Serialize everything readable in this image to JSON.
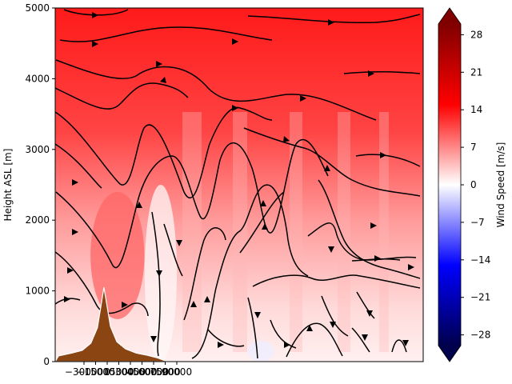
{
  "chart_data": {
    "type": "heatmap",
    "title": "",
    "xlabel": "",
    "ylabel": "Height ASL [m]",
    "x_tick_labels": [
      "−30000",
      "−15000",
      "0",
      "15000",
      "30000",
      "45000",
      "60000",
      "75000",
      "90000"
    ],
    "y_ticks": [
      0,
      1000,
      2000,
      3000,
      4000,
      5000
    ],
    "y_tick_labels": [
      "0",
      "1000",
      "2000",
      "3000",
      "4000",
      "5000"
    ],
    "ylim": [
      0,
      5000
    ],
    "xlim": [
      -45000,
      295000
    ],
    "colorbar": {
      "label": "Wind Speed [m/s]",
      "ticks": [
        -28,
        -21,
        -14,
        -7,
        0,
        7,
        14,
        21,
        28
      ],
      "tick_labels": [
        "−28",
        "−21",
        "−14",
        "−7",
        "0",
        "7",
        "14",
        "21",
        "28"
      ],
      "range": [
        -30,
        30
      ],
      "colormap": "seismic",
      "extend": "both"
    },
    "terrain": {
      "peak_x": 0,
      "peak_height": 1050,
      "color": "#8b4513",
      "profile_x": [
        -45000,
        -42000,
        -30000,
        -20000,
        -12000,
        -6000,
        -3000,
        0,
        3000,
        6000,
        12000,
        20000,
        30000,
        40000,
        50000,
        55000,
        60000
      ],
      "profile_h": [
        0,
        80,
        120,
        160,
        260,
        480,
        760,
        1050,
        780,
        500,
        280,
        180,
        120,
        90,
        50,
        20,
        0
      ]
    },
    "wind_speed_regions": [
      {
        "x_from": -45000,
        "x_to": 295000,
        "z_from": 3000,
        "z_to": 5000,
        "speed": 17
      },
      {
        "x_from": -45000,
        "x_to": 295000,
        "z_from": 1500,
        "z_to": 3000,
        "speed": 12
      },
      {
        "x_from": -45000,
        "x_to": 295000,
        "z_from": 0,
        "z_to": 1500,
        "speed": 5
      },
      {
        "x_from": -5000,
        "x_to": 30000,
        "z_from": 600,
        "z_to": 2400,
        "speed": 18
      },
      {
        "x_from": 45000,
        "x_to": 60000,
        "z_from": 0,
        "z_to": 2500,
        "speed": 1
      },
      {
        "x_from": 140000,
        "x_to": 150000,
        "z_from": 0,
        "z_to": 300,
        "speed": -2
      }
    ]
  }
}
